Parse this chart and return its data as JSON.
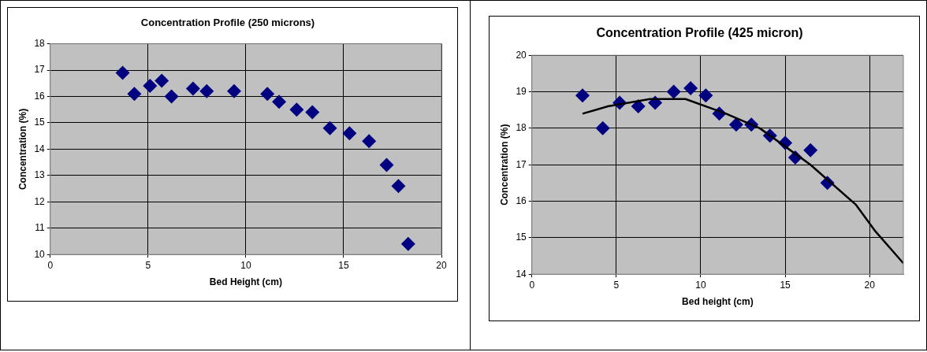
{
  "chart_data": [
    {
      "type": "scatter",
      "title": "Concentration Profile (250 microns)",
      "xlabel": "Bed Height (cm)",
      "ylabel": "Concentration (%)",
      "xlim": [
        0,
        20
      ],
      "xticks": [
        0,
        5,
        10,
        15,
        20
      ],
      "ylim": [
        10,
        18
      ],
      "yticks": [
        10,
        11,
        12,
        13,
        14,
        15,
        16,
        17,
        18
      ],
      "grid": true,
      "legend": false,
      "marker": "diamond",
      "series": [
        {
          "color": "#000080",
          "x": [
            3.7,
            4.3,
            5.1,
            5.7,
            6.2,
            7.3,
            8.0,
            9.4,
            11.1,
            11.7,
            12.6,
            13.4,
            14.3,
            15.3,
            16.3,
            17.2,
            17.8,
            18.3
          ],
          "values": [
            16.9,
            16.1,
            16.4,
            16.6,
            16.0,
            16.3,
            16.2,
            16.2,
            16.1,
            15.8,
            15.5,
            15.4,
            14.8,
            14.6,
            14.3,
            13.4,
            12.6,
            10.4
          ]
        }
      ]
    },
    {
      "type": "scatter",
      "title": "Concentration Profile (425 micron)",
      "xlabel": "Bed height (cm)",
      "ylabel": "Concentration (%)",
      "xlim": [
        0,
        22
      ],
      "xticks": [
        0,
        5,
        10,
        15,
        20
      ],
      "ylim": [
        14,
        20
      ],
      "yticks": [
        14,
        15,
        16,
        17,
        18,
        19,
        20
      ],
      "grid": true,
      "legend": false,
      "line_style": "solid",
      "series": [
        {
          "marker": "diamond",
          "color": "#000080",
          "x": [
            3.0,
            4.2,
            5.2,
            6.3,
            7.3,
            8.4,
            9.4,
            10.3,
            11.1,
            12.1,
            13.0,
            14.1,
            15.0,
            15.6,
            16.5,
            17.5
          ],
          "values": [
            18.9,
            18.0,
            18.7,
            18.6,
            18.7,
            19.0,
            19.1,
            18.9,
            18.4,
            18.1,
            18.1,
            17.8,
            17.6,
            17.2,
            17.4,
            16.5
          ]
        },
        {
          "type": "line",
          "marker": "none",
          "color": "#000000",
          "x": [
            3.0,
            4.5,
            7.0,
            9.1,
            11.5,
            13.5,
            16.5,
            19.2,
            20.3,
            22.0
          ],
          "values": [
            18.4,
            18.6,
            18.8,
            18.8,
            18.4,
            18.0,
            17.0,
            15.9,
            15.2,
            14.3
          ]
        }
      ]
    }
  ]
}
